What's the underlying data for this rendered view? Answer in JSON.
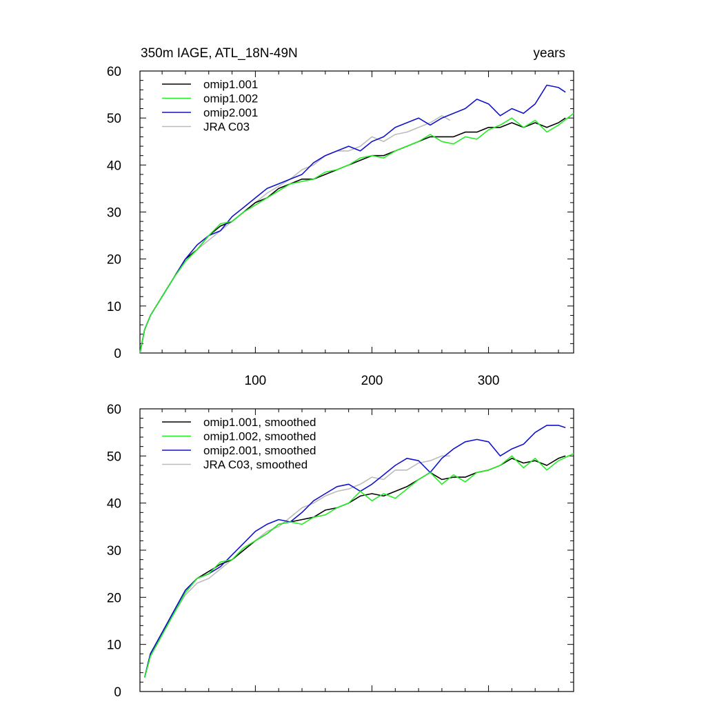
{
  "figure": {
    "title_left": "350m IAGE, ATL_18N-49N",
    "title_right": "years"
  },
  "colors": {
    "omip1.001": "#000000",
    "omip1.002": "#22ee22",
    "omip2.001": "#1111cc",
    "JRA C03": "#bbbbbb"
  },
  "chart_data": [
    {
      "type": "line",
      "title": "350m IAGE, ATL_18N-49N",
      "units": "years",
      "xlim": [
        1,
        373
      ],
      "ylim": [
        0,
        60
      ],
      "x_tick_values": [
        100,
        200,
        300
      ],
      "x_tick_labels": [
        "100",
        "200",
        "300"
      ],
      "y_tick_values": [
        0,
        10,
        20,
        30,
        40,
        50,
        60
      ],
      "y_tick_labels": [
        "0",
        "10",
        "20",
        "30",
        "40",
        "50",
        "60"
      ],
      "grid": false,
      "legend_position": "top-left",
      "series": [
        {
          "name": "omip1.001",
          "color": "#000000",
          "x": [
            1,
            5,
            10,
            20,
            30,
            40,
            50,
            60,
            70,
            80,
            90,
            100,
            110,
            120,
            130,
            140,
            150,
            160,
            170,
            180,
            190,
            200,
            210,
            220,
            230,
            240,
            250,
            260,
            270,
            280,
            290,
            300,
            310,
            320,
            330,
            340,
            350,
            360,
            366
          ],
          "y": [
            0,
            5,
            8,
            12,
            16,
            20,
            22,
            25,
            27,
            28,
            30,
            32,
            33,
            35,
            36,
            37,
            37,
            38,
            39,
            40,
            41,
            42,
            42,
            43,
            44,
            45,
            46,
            46,
            46,
            47,
            47,
            48,
            48,
            49,
            48,
            49,
            48,
            49,
            50
          ]
        },
        {
          "name": "omip1.002",
          "color": "#22ee22",
          "x": [
            1,
            5,
            10,
            20,
            30,
            40,
            50,
            60,
            70,
            80,
            90,
            100,
            110,
            120,
            130,
            140,
            150,
            160,
            170,
            180,
            190,
            200,
            210,
            220,
            230,
            240,
            250,
            260,
            270,
            280,
            290,
            300,
            310,
            320,
            330,
            340,
            350,
            360,
            373
          ],
          "y": [
            0,
            5,
            8,
            12,
            16,
            19.5,
            22,
            25,
            27.5,
            28,
            30,
            31.5,
            33,
            34.5,
            36,
            36.5,
            37,
            38.5,
            39,
            40,
            41.5,
            42,
            41.5,
            43,
            44,
            45,
            46.5,
            45,
            44.5,
            46,
            45.5,
            47.5,
            48.5,
            50,
            48,
            49.5,
            47,
            48.5,
            51
          ]
        },
        {
          "name": "omip2.001",
          "color": "#1111cc",
          "x": [
            1,
            5,
            10,
            20,
            30,
            40,
            50,
            60,
            70,
            80,
            90,
            100,
            110,
            120,
            130,
            140,
            150,
            160,
            170,
            180,
            190,
            200,
            210,
            220,
            230,
            240,
            250,
            260,
            270,
            280,
            290,
            300,
            310,
            320,
            330,
            340,
            350,
            360,
            366
          ],
          "y": [
            0,
            5,
            8,
            12,
            16,
            20,
            23,
            25,
            26,
            29,
            31,
            33,
            35,
            36,
            37,
            38,
            40.5,
            42,
            43,
            44,
            43,
            45,
            46,
            48,
            49,
            50,
            48.5,
            50,
            51,
            52,
            54,
            53,
            50.5,
            52,
            51,
            53,
            57,
            56.5,
            55.5
          ]
        },
        {
          "name": "JRA C03",
          "color": "#bbbbbb",
          "x": [
            1,
            5,
            10,
            20,
            30,
            40,
            50,
            60,
            70,
            80,
            90,
            100,
            110,
            120,
            130,
            140,
            150,
            160,
            170,
            180,
            190,
            200,
            210,
            220,
            230,
            240,
            250,
            260,
            267
          ],
          "y": [
            0,
            5,
            8,
            12,
            16,
            19.5,
            22,
            24,
            26,
            28,
            30,
            32,
            34,
            35.5,
            37,
            39,
            40,
            42,
            43,
            43,
            44,
            46,
            45,
            46.5,
            47,
            48,
            49,
            50.5,
            49.5
          ]
        }
      ]
    },
    {
      "type": "line",
      "xlim": [
        1,
        373
      ],
      "ylim": [
        0,
        60
      ],
      "x_tick_values": [
        100,
        200,
        300
      ],
      "y_tick_values": [
        0,
        10,
        20,
        30,
        40,
        50,
        60
      ],
      "y_tick_labels": [
        "0",
        "10",
        "20",
        "30",
        "40",
        "50",
        "60"
      ],
      "grid": false,
      "legend_position": "top-left",
      "series": [
        {
          "name": "omip1.001, smoothed",
          "color": "#000000",
          "x": [
            5,
            10,
            20,
            30,
            40,
            50,
            60,
            70,
            80,
            90,
            100,
            110,
            120,
            130,
            140,
            150,
            160,
            170,
            180,
            190,
            200,
            210,
            220,
            230,
            240,
            250,
            260,
            270,
            280,
            290,
            300,
            310,
            320,
            330,
            340,
            350,
            360,
            366
          ],
          "y": [
            3,
            8,
            12.5,
            17,
            21.5,
            24,
            25.5,
            27,
            28,
            30,
            32,
            33.5,
            35.5,
            36,
            36.5,
            37,
            38.5,
            39,
            40,
            41.5,
            42,
            41.5,
            42.5,
            43.5,
            45,
            46.5,
            45,
            45.5,
            45.5,
            46.5,
            47,
            48,
            49.5,
            48.5,
            49,
            48,
            49.5,
            50
          ]
        },
        {
          "name": "omip1.002, smoothed",
          "color": "#22ee22",
          "x": [
            5,
            10,
            20,
            30,
            40,
            50,
            60,
            70,
            80,
            90,
            100,
            110,
            120,
            130,
            140,
            150,
            160,
            170,
            180,
            190,
            200,
            210,
            220,
            230,
            240,
            250,
            260,
            270,
            280,
            290,
            300,
            310,
            320,
            330,
            340,
            350,
            360,
            373
          ],
          "y": [
            3,
            7.5,
            12,
            16.5,
            21,
            24,
            25,
            27.5,
            28,
            30.5,
            32,
            33.5,
            35.5,
            36,
            35.5,
            37,
            37.5,
            39,
            40,
            42.5,
            40.5,
            42,
            41,
            43,
            45,
            46.5,
            44,
            46,
            44.5,
            46.5,
            47,
            48,
            50,
            47.5,
            49.5,
            47,
            49,
            50.5
          ]
        },
        {
          "name": "omip2.001, smoothed",
          "color": "#1111cc",
          "x": [
            5,
            10,
            20,
            30,
            40,
            50,
            60,
            70,
            80,
            90,
            100,
            110,
            120,
            130,
            140,
            150,
            160,
            170,
            180,
            190,
            200,
            210,
            220,
            230,
            240,
            250,
            260,
            270,
            280,
            290,
            300,
            310,
            320,
            330,
            340,
            350,
            360,
            366
          ],
          "y": [
            3,
            8,
            12.5,
            17,
            21.5,
            24,
            25,
            26.5,
            29,
            31.5,
            34,
            35.5,
            36.5,
            36,
            38,
            40.5,
            42,
            43.5,
            44,
            42.5,
            44,
            46,
            48,
            49.5,
            49,
            46.5,
            49.5,
            51.5,
            53,
            53.5,
            53,
            50,
            51.5,
            52.5,
            55,
            56.5,
            56.5,
            56
          ]
        },
        {
          "name": "JRA C03, smoothed",
          "color": "#bbbbbb",
          "x": [
            5,
            10,
            20,
            30,
            40,
            50,
            60,
            70,
            80,
            90,
            100,
            110,
            120,
            130,
            140,
            150,
            160,
            170,
            180,
            190,
            200,
            210,
            220,
            230,
            240,
            250,
            260,
            267
          ],
          "y": [
            3,
            7.5,
            12,
            16.5,
            20.5,
            23,
            24,
            26,
            28,
            30,
            32,
            34,
            35,
            37,
            39,
            40,
            41.5,
            42.5,
            43,
            44,
            45.5,
            45,
            47,
            47,
            48.5,
            49,
            50,
            50
          ]
        }
      ]
    }
  ]
}
